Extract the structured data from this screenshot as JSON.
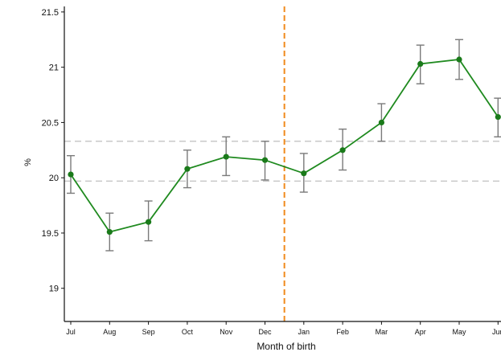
{
  "chart_data": {
    "type": "line",
    "xlabel": "Month of birth",
    "ylabel": "%",
    "categories": [
      "Jul",
      "Aug",
      "Sep",
      "Oct",
      "Nov",
      "Dec",
      "Jan",
      "Feb",
      "Mar",
      "Apr",
      "May",
      "Jun"
    ],
    "series": [
      {
        "values": [
          20.03,
          19.51,
          19.6,
          20.08,
          20.19,
          20.16,
          20.04,
          20.25,
          20.5,
          21.03,
          21.07,
          20.55
        ],
        "error_low": [
          19.86,
          19.34,
          19.43,
          19.91,
          20.02,
          19.98,
          19.87,
          20.07,
          20.33,
          20.85,
          20.89,
          20.37
        ],
        "error_high": [
          20.2,
          19.68,
          19.79,
          20.25,
          20.37,
          20.33,
          20.22,
          20.44,
          20.67,
          21.2,
          21.25,
          20.72
        ]
      }
    ],
    "ylim": [
      18.7,
      21.55
    ],
    "yticks": [
      "19",
      "19.5",
      "20",
      "20.5",
      "21",
      "21.5"
    ],
    "reference_lines_y": [
      20.33,
      19.97
    ],
    "vertical_divider_after": "Dec",
    "grid": false,
    "legend": "none",
    "colors": {
      "line": "#1f8a1f",
      "marker": "#1a7a1a",
      "error_bar": "#7a7a7a",
      "reference_line": "#c8c8c8",
      "divider": "#f08a1c",
      "axis": "#111111"
    }
  }
}
